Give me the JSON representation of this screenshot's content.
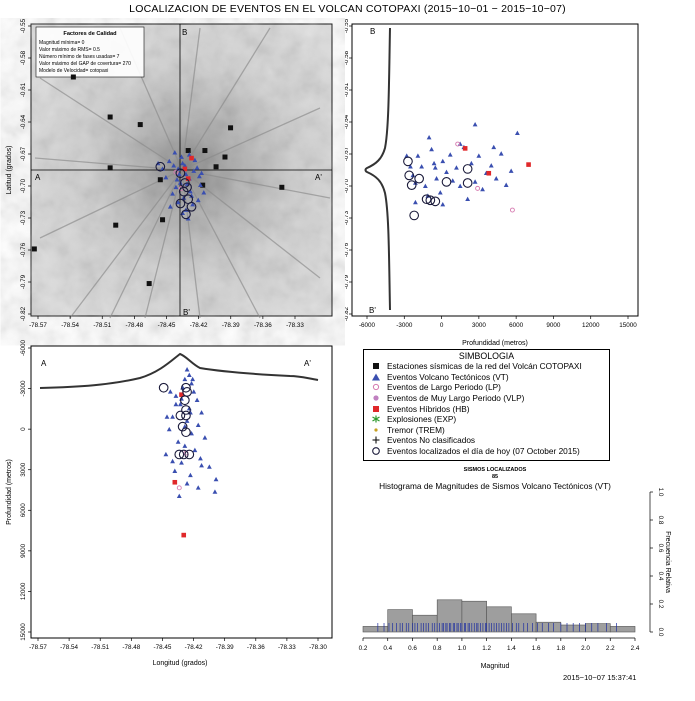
{
  "page_title": "LOCALIZACION DE EVENTOS EN EL VOLCAN COTOPAXI (2015−10−01 − 2015−10−07)",
  "timestamp": "2015−10−07 15:37:41",
  "colors": {
    "vt": "#3a4fb0",
    "lp": "#d67ab0",
    "vlp": "#c080c0",
    "hb": "#e0282a",
    "exp": "#2e9a2e",
    "trem": "#c8a020",
    "today": "#1a1a3a",
    "station": "#111111",
    "hist_bar": "#9e9e9e",
    "rug": "#2030a0"
  },
  "quality_box": {
    "title": "Factores de Calidad",
    "lines": [
      "Magnitud mínima= 0",
      "Valor máximo de RMS= 0.5",
      "Número mínimo de fases usadas= 7",
      "Valor máximo del GAP de covertura= 270",
      "Modelo de Velocidad= cotopaxi"
    ]
  },
  "map_panel": {
    "ylabel": "Latitud (grados)",
    "yticks": [
      "-0.55",
      "-0.58",
      "-0.61",
      "-0.64",
      "-0.67",
      "-0.70",
      "-0.73",
      "-0.76",
      "-0.79",
      "-0.82"
    ],
    "xticks": [
      "-78.57",
      "-78.54",
      "-78.51",
      "-78.48",
      "-78.45",
      "-78.42",
      "-78.39",
      "-78.36",
      "-78.33"
    ],
    "section_labels": {
      "a": "A",
      "a_prime": "A'",
      "b": "B",
      "b_prime": "B'"
    }
  },
  "depth_lat_panel": {
    "xlabel": "Profundidad (metros)",
    "xticks": [
      "-6000",
      "-3000",
      "0",
      "3000",
      "6000",
      "9000",
      "12000",
      "15000"
    ],
    "yticks": [
      "-0.55",
      "-0.58",
      "-0.61",
      "-0.64",
      "-0.67",
      "-0.70",
      "-0.73",
      "-0.76",
      "-0.79",
      "-0.82"
    ],
    "label_b": "B",
    "label_b_prime": "B'"
  },
  "lon_depth_panel": {
    "xlabel": "Longitud (grados)",
    "ylabel": "Profundidad (metros)",
    "xticks": [
      "-78.57",
      "-78.54",
      "-78.51",
      "-78.48",
      "-78.45",
      "-78.42",
      "-78.39",
      "-78.36",
      "-78.33",
      "-78.30"
    ],
    "yticks": [
      "-6000",
      "-3000",
      "0",
      "3000",
      "6000",
      "9000",
      "12000",
      "15000"
    ],
    "label_a": "A",
    "label_a_prime": "A'"
  },
  "legend": {
    "title": "SIMBOLOGIA",
    "items": [
      {
        "symbol": "station-square",
        "label": "Estaciones sísmicas de la red del Volcán COTOPAXI"
      },
      {
        "symbol": "vt-triangle",
        "label": "Eventos Volcano Tectónicos (VT)"
      },
      {
        "symbol": "lp-circle",
        "label": "Eventos de Largo Periodo (LP)"
      },
      {
        "symbol": "vlp-circle",
        "label": "Eventos de Muy Largo Periodo (VLP)"
      },
      {
        "symbol": "hb-square",
        "label": "Eventos Híbridos (HB)"
      },
      {
        "symbol": "exp-asterisk",
        "label": "Explosiones (EXP)"
      },
      {
        "symbol": "trem-star",
        "label": "Tremor (TREM)"
      },
      {
        "symbol": "plus",
        "label": "Eventos No clasificados"
      },
      {
        "symbol": "today-circle",
        "label": "Eventos localizados el día de hoy (07 October 2015)"
      }
    ]
  },
  "histogram_caption_top": "SISMOS LOCALIZADOS",
  "histogram_caption_count": "85",
  "histogram_title": "Histograma de Magnitudes de Sismos Volcano Tectónicos (VT)",
  "chart_data": [
    {
      "type": "histogram",
      "title": "Histograma de Magnitudes de Sismos Volcano Tectónicos (VT)",
      "xlabel": "Magnitud",
      "ylabel": "Frecuencia Relativa",
      "xlim": [
        0.2,
        2.4
      ],
      "ylim": [
        0,
        1.0
      ],
      "xticks": [
        "0.2",
        "0.4",
        "0.6",
        "0.8",
        "1.0",
        "1.2",
        "1.4",
        "1.6",
        "1.8",
        "2.0",
        "2.2",
        "2.4"
      ],
      "yticks": [
        "0.0",
        "0.2",
        "0.4",
        "0.6",
        "0.8",
        "1.0"
      ],
      "bins": [
        0.2,
        0.4,
        0.6,
        0.8,
        1.0,
        1.2,
        1.4,
        1.6,
        1.8,
        2.0,
        2.2,
        2.4
      ],
      "values": [
        0.04,
        0.16,
        0.12,
        0.23,
        0.22,
        0.18,
        0.13,
        0.07,
        0.05,
        0.06,
        0.04
      ],
      "rug": [
        0.32,
        0.37,
        0.41,
        0.44,
        0.47,
        0.5,
        0.52,
        0.55,
        0.57,
        0.6,
        0.62,
        0.64,
        0.67,
        0.69,
        0.71,
        0.73,
        0.76,
        0.78,
        0.8,
        0.82,
        0.84,
        0.85,
        0.87,
        0.88,
        0.9,
        0.91,
        0.93,
        0.94,
        0.96,
        0.97,
        0.99,
        1.0,
        1.02,
        1.03,
        1.05,
        1.06,
        1.08,
        1.1,
        1.12,
        1.13,
        1.15,
        1.17,
        1.19,
        1.2,
        1.22,
        1.24,
        1.26,
        1.28,
        1.3,
        1.32,
        1.34,
        1.36,
        1.38,
        1.41,
        1.44,
        1.46,
        1.5,
        1.53,
        1.57,
        1.61,
        1.65,
        1.7,
        1.74,
        1.8,
        1.85,
        1.9,
        1.95,
        2.0,
        2.05,
        2.1,
        2.17,
        2.25
      ]
    },
    {
      "type": "scatter",
      "name_ref": "map",
      "xlim": [
        -78.57,
        -78.3
      ],
      "ylim": [
        -0.82,
        -0.55
      ],
      "series": [
        {
          "name": "Estaciones sísmicas de la red del Volcán COTOPAXI",
          "points": [
            [
              -78.532,
              -0.599
            ],
            [
              -78.499,
              -0.636
            ],
            [
              -78.472,
              -0.643
            ],
            [
              -78.391,
              -0.646
            ],
            [
              -78.396,
              -0.673
            ],
            [
              -78.499,
              -0.683
            ],
            [
              -78.454,
              -0.694
            ],
            [
              -78.345,
              -0.701
            ],
            [
              -78.452,
              -0.731
            ],
            [
              -78.494,
              -0.736
            ],
            [
              -78.464,
              -0.79
            ],
            [
              -78.567,
              -0.758
            ],
            [
              -78.429,
              -0.667
            ],
            [
              -78.414,
              -0.667
            ],
            [
              -78.404,
              -0.682
            ],
            [
              -78.416,
              -0.699
            ]
          ]
        },
        {
          "name": "Eventos Volcano Tectónicos (VT)",
          "points": [
            [
              -78.446,
              -0.677
            ],
            [
              -78.442,
              -0.681
            ],
            [
              -78.438,
              -0.684
            ],
            [
              -78.434,
              -0.679
            ],
            [
              -78.431,
              -0.689
            ],
            [
              -78.428,
              -0.693
            ],
            [
              -78.424,
              -0.686
            ],
            [
              -78.421,
              -0.683
            ],
            [
              -78.419,
              -0.691
            ],
            [
              -78.436,
              -0.697
            ],
            [
              -78.44,
              -0.701
            ],
            [
              -78.427,
              -0.705
            ],
            [
              -78.433,
              -0.711
            ],
            [
              -78.438,
              -0.715
            ],
            [
              -78.425,
              -0.717
            ],
            [
              -78.431,
              -0.722
            ],
            [
              -78.443,
              -0.707
            ],
            [
              -78.449,
              -0.692
            ],
            [
              -78.452,
              -0.684
            ],
            [
              -78.418,
              -0.699
            ],
            [
              -78.415,
              -0.706
            ],
            [
              -78.435,
              -0.673
            ],
            [
              -78.441,
              -0.669
            ],
            [
              -78.428,
              -0.671
            ],
            [
              -78.423,
              -0.676
            ],
            [
              -78.437,
              -0.689
            ],
            [
              -78.43,
              -0.698
            ],
            [
              -78.426,
              -0.709
            ],
            [
              -78.434,
              -0.725
            ],
            [
              -78.429,
              -0.73
            ],
            [
              -78.445,
              -0.719
            ],
            [
              -78.42,
              -0.713
            ],
            [
              -78.439,
              -0.694
            ],
            [
              -78.456,
              -0.679
            ],
            [
              -78.417,
              -0.688
            ],
            [
              -78.432,
              -0.681
            ]
          ]
        },
        {
          "name": "Eventos Híbridos (HB)",
          "points": [
            [
              -78.432,
              -0.684
            ],
            [
              -78.429,
              -0.693
            ],
            [
              -78.426,
              -0.674
            ]
          ]
        },
        {
          "name": "Eventos de Largo Periodo (LP)",
          "points": [
            [
              -78.44,
              -0.687
            ],
            [
              -78.435,
              -0.702
            ]
          ]
        },
        {
          "name": "Eventos localizados el día de hoy (07 October 2015)",
          "points": [
            [
              -78.454,
              -0.682
            ],
            [
              -78.436,
              -0.688
            ],
            [
              -78.432,
              -0.697
            ],
            [
              -78.43,
              -0.701
            ],
            [
              -78.433,
              -0.705
            ],
            [
              -78.429,
              -0.712
            ],
            [
              -78.436,
              -0.716
            ],
            [
              -78.426,
              -0.719
            ],
            [
              -78.431,
              -0.726
            ]
          ]
        }
      ]
    },
    {
      "type": "scatter",
      "name_ref": "depth-latitude",
      "xlim": [
        -7000,
        16000
      ],
      "ylim": [
        -0.82,
        -0.55
      ],
      "series": [
        {
          "name": "Eventos Volcano Tectónicos (VT)",
          "points": [
            [
              -2300,
              -0.682
            ],
            [
              -2100,
              -0.69
            ],
            [
              -1900,
              -0.697
            ],
            [
              -1700,
              -0.672
            ],
            [
              -1400,
              -0.682
            ],
            [
              -1100,
              -0.7
            ],
            [
              -900,
              -0.709
            ],
            [
              -600,
              -0.666
            ],
            [
              -400,
              -0.679
            ],
            [
              -200,
              -0.693
            ],
            [
              100,
              -0.706
            ],
            [
              300,
              -0.717
            ],
            [
              600,
              -0.687
            ],
            [
              900,
              -0.671
            ],
            [
              1100,
              -0.695
            ],
            [
              1400,
              -0.683
            ],
            [
              1700,
              -0.7
            ],
            [
              2000,
              -0.664
            ],
            [
              2300,
              -0.712
            ],
            [
              2600,
              -0.679
            ],
            [
              2900,
              -0.696
            ],
            [
              3200,
              -0.672
            ],
            [
              3500,
              -0.703
            ],
            [
              3800,
              -0.688
            ],
            [
              4200,
              -0.681
            ],
            [
              4600,
              -0.693
            ],
            [
              5000,
              -0.67
            ],
            [
              5400,
              -0.699
            ],
            [
              5800,
              -0.686
            ],
            [
              6300,
              -0.651
            ],
            [
              -2600,
              -0.672
            ],
            [
              -800,
              -0.655
            ],
            [
              300,
              -0.677
            ],
            [
              1700,
              -0.661
            ],
            [
              2900,
              -0.643
            ],
            [
              4400,
              -0.664
            ],
            [
              -1900,
              -0.715
            ],
            [
              -300,
              -0.683
            ]
          ]
        },
        {
          "name": "Eventos Híbridos (HB)",
          "points": [
            [
              2100,
              -0.665
            ],
            [
              4000,
              -0.688
            ],
            [
              7200,
              -0.68
            ]
          ]
        },
        {
          "name": "Eventos de Largo Periodo (LP)",
          "points": [
            [
              1500,
              -0.661
            ],
            [
              3100,
              -0.702
            ],
            [
              5900,
              -0.722
            ]
          ]
        },
        {
          "name": "Eventos localizados el día de hoy (07 October 2015)",
          "points": [
            [
              -2500,
              -0.677
            ],
            [
              -2400,
              -0.69
            ],
            [
              -2200,
              -0.699
            ],
            [
              -1600,
              -0.693
            ],
            [
              -1000,
              -0.712
            ],
            [
              -700,
              -0.713
            ],
            [
              -300,
              -0.714
            ],
            [
              600,
              -0.696
            ],
            [
              2300,
              -0.684
            ],
            [
              2300,
              -0.697
            ],
            [
              -2000,
              -0.727
            ]
          ]
        }
      ]
    },
    {
      "type": "scatter",
      "name_ref": "longitude-depth",
      "xlim": [
        -78.57,
        -78.3
      ],
      "ylim": [
        15000,
        -6000
      ],
      "series": [
        {
          "name": "Eventos Volcano Tectónicos (VT)",
          "points": [
            [
              -78.43,
              -4300
            ],
            [
              -78.428,
              -3900
            ],
            [
              -78.432,
              -3600
            ],
            [
              -78.426,
              -3300
            ],
            [
              -78.434,
              -3000
            ],
            [
              -78.424,
              -2700
            ],
            [
              -78.44,
              -2400
            ],
            [
              -78.421,
              -2100
            ],
            [
              -78.436,
              -1800
            ],
            [
              -78.428,
              -1500
            ],
            [
              -78.417,
              -1200
            ],
            [
              -78.443,
              -900
            ],
            [
              -78.43,
              -600
            ],
            [
              -78.42,
              -300
            ],
            [
              -78.446,
              0
            ],
            [
              -78.426,
              300
            ],
            [
              -78.414,
              600
            ],
            [
              -78.438,
              900
            ],
            [
              -78.432,
              1200
            ],
            [
              -78.423,
              1500
            ],
            [
              -78.449,
              1800
            ],
            [
              -78.418,
              2100
            ],
            [
              -78.435,
              2400
            ],
            [
              -78.41,
              2700
            ],
            [
              -78.441,
              3000
            ],
            [
              -78.427,
              3300
            ],
            [
              -78.404,
              3600
            ],
            [
              -78.43,
              3900
            ],
            [
              -78.42,
              4200
            ],
            [
              -78.405,
              4500
            ],
            [
              -78.437,
              4800
            ],
            [
              -78.445,
              -2700
            ],
            [
              -78.44,
              -1800
            ],
            [
              -78.448,
              -900
            ],
            [
              -78.425,
              -3600
            ],
            [
              -78.432,
              -200
            ],
            [
              -78.417,
              2600
            ],
            [
              -78.427,
              -1200
            ],
            [
              -78.443,
              2300
            ],
            [
              -78.435,
              -2200
            ]
          ]
        },
        {
          "name": "Eventos Híbridos (HB)",
          "points": [
            [
              -78.435,
              -2500
            ],
            [
              -78.441,
              3800
            ],
            [
              -78.433,
              7600
            ]
          ]
        },
        {
          "name": "Eventos de Largo Periodo (LP)",
          "points": [
            [
              -78.431,
              1700
            ],
            [
              -78.437,
              4200
            ]
          ]
        },
        {
          "name": "Eventos localizados el día de hoy (07 October 2015)",
          "points": [
            [
              -78.451,
              -3000
            ],
            [
              -78.431,
              -3000
            ],
            [
              -78.432,
              -2100
            ],
            [
              -78.431,
              -1400
            ],
            [
              -78.431,
              -1000
            ],
            [
              -78.436,
              -1000
            ],
            [
              -78.434,
              -200
            ],
            [
              -78.431,
              200
            ],
            [
              -78.433,
              1800
            ],
            [
              -78.428,
              1800
            ],
            [
              -78.437,
              1800
            ],
            [
              -78.43,
              -2700
            ]
          ]
        }
      ]
    }
  ]
}
